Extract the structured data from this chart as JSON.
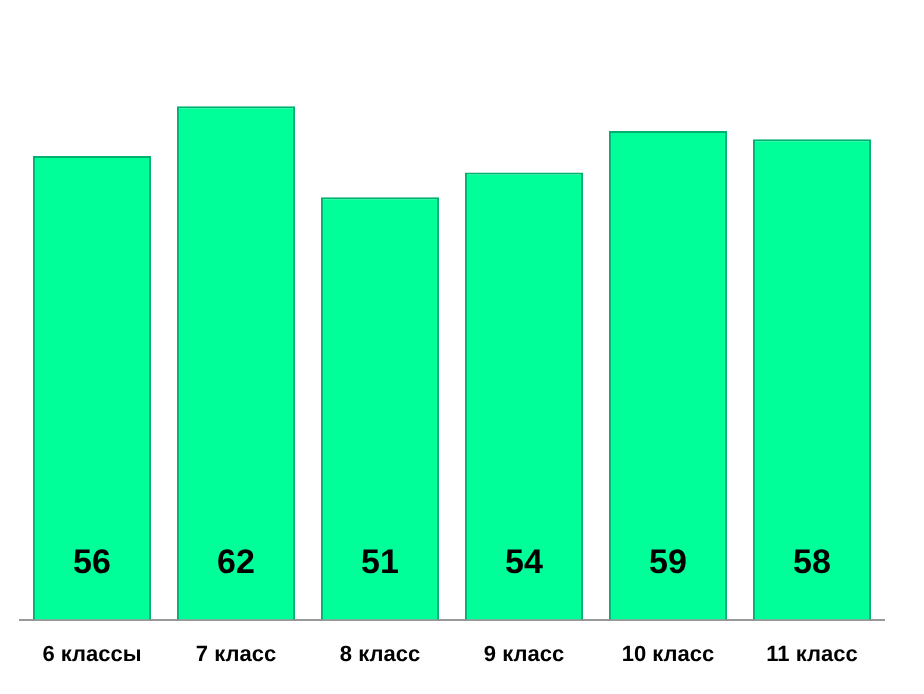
{
  "chart_data": {
    "type": "bar",
    "categories": [
      "6 классы",
      "7 класс",
      "8 класс",
      "9 класс",
      "10 класс",
      "11 класс"
    ],
    "values": [
      56,
      62,
      51,
      54,
      59,
      58
    ],
    "color": "#00ff99",
    "data_labels": true,
    "grid": false,
    "legend": false
  }
}
